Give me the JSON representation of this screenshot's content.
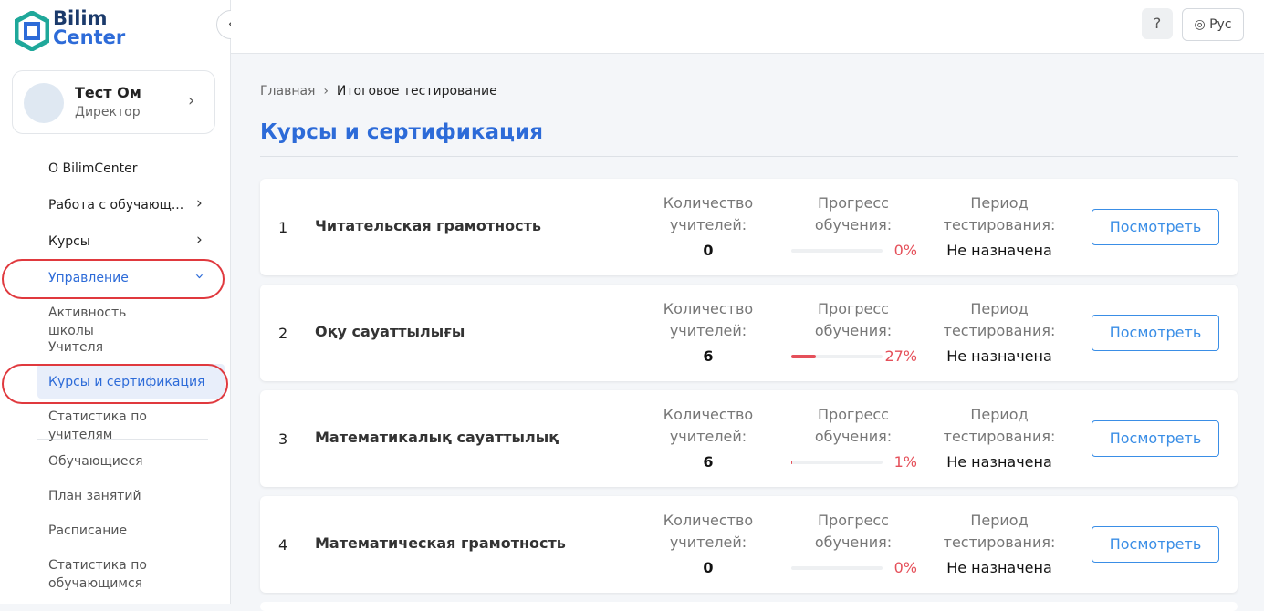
{
  "logo": {
    "line1": "Bilim",
    "line2": "Center"
  },
  "header": {
    "language": "Рус"
  },
  "user": {
    "name": "Тест Ом",
    "role": "Директор"
  },
  "menu": [
    {
      "label": "О BilimCenter"
    },
    {
      "label": "Работа с обучающ..."
    },
    {
      "label": "Курсы"
    },
    {
      "label": "Управление"
    }
  ],
  "submenu": [
    {
      "label": "Активность школы"
    },
    {
      "label": "Учителя"
    },
    {
      "label": "Курсы и сертификация"
    },
    {
      "label": "Статистика по учителям"
    },
    {
      "label": "Обучающиеся"
    },
    {
      "label": "План занятий"
    },
    {
      "label": "Расписание"
    },
    {
      "label": "Статистика по обучающимся"
    }
  ],
  "breadcrumb": [
    "Главная",
    "Итоговое тестирование"
  ],
  "page_title": "Курсы и сертификация",
  "courses": [
    {
      "number": 1,
      "title": "Читательская грамотность",
      "teachers_label": "Количество учителей:",
      "teachers": 0,
      "progress_label": "Прогресс обучения:",
      "progress": {
        "value": 0,
        "label": "0%"
      },
      "period_label": "Период тестирования:",
      "period": "Не назначена",
      "button": "Посмотреть"
    },
    {
      "number": 2,
      "title": "Оқу сауаттылығы",
      "teachers_label": "Количество учителей:",
      "teachers": 6,
      "progress_label": "Прогресс обучения:",
      "progress": {
        "value": 27,
        "label": "27%"
      },
      "period_label": "Период тестирования:",
      "period": "Не назначена",
      "button": "Посмотреть"
    },
    {
      "number": 3,
      "title": "Математикалық сауаттылық",
      "teachers_label": "Количество учителей:",
      "teachers": 6,
      "progress_label": "Прогресс обучения:",
      "progress": {
        "value": 1,
        "label": "1%"
      },
      "period_label": "Период тестирования:",
      "period": "Не назначена",
      "button": "Посмотреть"
    },
    {
      "number": 4,
      "title": "Математическая грамотность",
      "teachers_label": "Количество учителей:",
      "teachers": 0,
      "progress_label": "Прогресс обучения:",
      "progress": {
        "value": 0,
        "label": "0%"
      },
      "period_label": "Период тестирования:",
      "period": "Не назначена",
      "button": "Посмотреть"
    }
  ]
}
